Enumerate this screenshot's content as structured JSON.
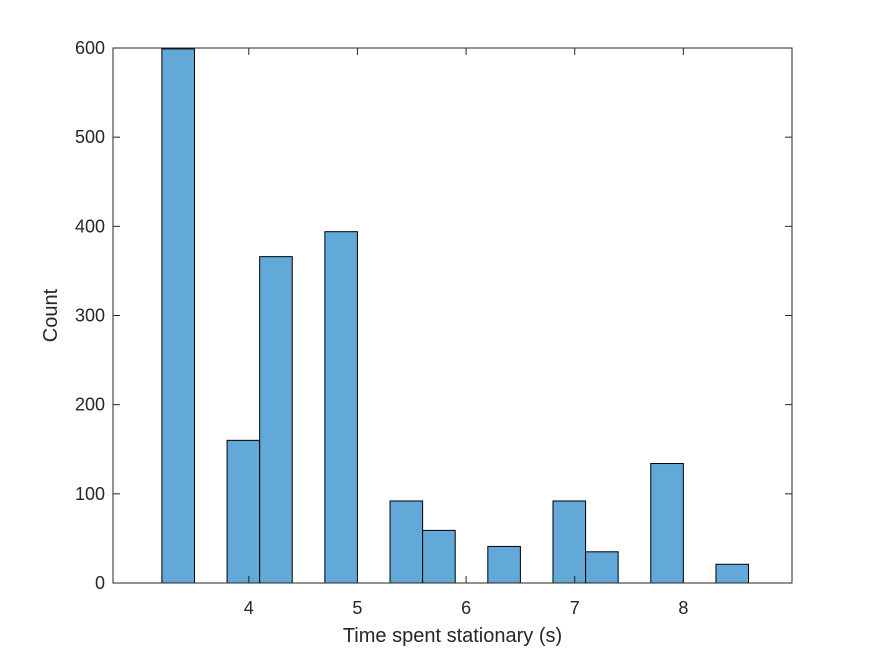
{
  "chart_data": {
    "type": "bar",
    "title": "",
    "xlabel": "Time spent stationary (s)",
    "ylabel": "Count",
    "xlim": [
      2.75,
      9.0
    ],
    "ylim": [
      0,
      600
    ],
    "xticks": [
      4,
      5,
      6,
      7,
      8
    ],
    "yticks": [
      0,
      100,
      200,
      300,
      400,
      500,
      600
    ],
    "grid": false,
    "legend": "none",
    "bin_width": 0.3,
    "bars": [
      {
        "x0": 3.2,
        "x1": 3.5,
        "value": 599
      },
      {
        "x0": 3.8,
        "x1": 4.1,
        "value": 160
      },
      {
        "x0": 4.1,
        "x1": 4.4,
        "value": 366
      },
      {
        "x0": 4.7,
        "x1": 5.0,
        "value": 394
      },
      {
        "x0": 5.3,
        "x1": 5.6,
        "value": 92
      },
      {
        "x0": 5.6,
        "x1": 5.9,
        "value": 59
      },
      {
        "x0": 6.2,
        "x1": 6.5,
        "value": 41
      },
      {
        "x0": 6.8,
        "x1": 7.1,
        "value": 92
      },
      {
        "x0": 7.1,
        "x1": 7.4,
        "value": 35
      },
      {
        "x0": 7.7,
        "x1": 8.0,
        "value": 134
      },
      {
        "x0": 8.3,
        "x1": 8.6,
        "value": 21
      }
    ],
    "colors": {
      "bar_fill": "#62a8d8",
      "bar_edge": "#000000",
      "axis": "#262626",
      "background": "#ffffff"
    }
  }
}
